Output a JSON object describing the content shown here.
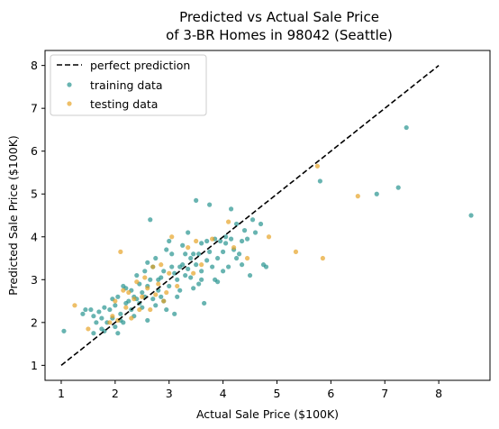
{
  "chart_data": {
    "type": "scatter",
    "title_lines": [
      "Predicted vs Actual Sale Price",
      "of 3-BR Homes in 98042 (Seattle)"
    ],
    "xlabel": "Actual Sale Price ($100K)",
    "ylabel": "Predicted Sale Price ($100K)",
    "xlim": [
      0.7,
      8.95
    ],
    "ylim": [
      0.65,
      8.35
    ],
    "xticks": [
      1,
      2,
      3,
      4,
      5,
      6,
      7,
      8
    ],
    "yticks": [
      1,
      2,
      3,
      4,
      5,
      6,
      7,
      8
    ],
    "grid": false,
    "legend_position": "top-left",
    "colors": {
      "reference_line": "#000000",
      "training": "#20908c",
      "testing": "#e6a020"
    },
    "reference_line": {
      "name": "perfect prediction",
      "x": [
        1,
        8
      ],
      "y": [
        1,
        8
      ]
    },
    "series": [
      {
        "name": "training data",
        "points": [
          [
            1.05,
            1.8
          ],
          [
            1.4,
            2.2
          ],
          [
            1.45,
            2.3
          ],
          [
            1.55,
            2.3
          ],
          [
            1.6,
            2.15
          ],
          [
            1.65,
            2.0
          ],
          [
            1.7,
            2.25
          ],
          [
            1.75,
            2.1
          ],
          [
            1.8,
            1.8
          ],
          [
            1.85,
            2.0
          ],
          [
            1.9,
            2.3
          ],
          [
            1.95,
            2.1
          ],
          [
            2.0,
            2.4
          ],
          [
            2.05,
            2.6
          ],
          [
            2.1,
            2.2
          ],
          [
            2.15,
            2.0
          ],
          [
            2.2,
            2.8
          ],
          [
            2.25,
            2.5
          ],
          [
            2.3,
            2.3
          ],
          [
            2.35,
            2.6
          ],
          [
            2.4,
            3.1
          ],
          [
            2.45,
            2.9
          ],
          [
            2.5,
            2.7
          ],
          [
            2.55,
            3.2
          ],
          [
            2.6,
            2.85
          ],
          [
            2.65,
            4.4
          ],
          [
            2.7,
            3.3
          ],
          [
            2.75,
            3.5
          ],
          [
            2.8,
            3.0
          ],
          [
            2.85,
            2.6
          ],
          [
            2.9,
            3.2
          ],
          [
            2.95,
            3.7
          ],
          [
            3.0,
            3.9
          ],
          [
            3.05,
            3.3
          ],
          [
            3.1,
            2.2
          ],
          [
            3.15,
            3.0
          ],
          [
            3.2,
            3.3
          ],
          [
            3.25,
            3.8
          ],
          [
            3.3,
            3.1
          ],
          [
            3.35,
            4.1
          ],
          [
            3.4,
            3.5
          ],
          [
            3.45,
            2.8
          ],
          [
            3.5,
            4.85
          ],
          [
            3.55,
            3.6
          ],
          [
            3.6,
            3.2
          ],
          [
            3.65,
            2.45
          ],
          [
            3.7,
            3.9
          ],
          [
            3.75,
            4.75
          ],
          [
            3.8,
            3.3
          ],
          [
            3.85,
            3.0
          ],
          [
            3.9,
            3.5
          ],
          [
            3.95,
            3.9
          ],
          [
            4.0,
            3.65
          ],
          [
            4.05,
            4.0
          ],
          [
            4.1,
            3.3
          ],
          [
            4.15,
            4.65
          ],
          [
            4.2,
            3.7
          ],
          [
            4.25,
            3.5
          ],
          [
            4.3,
            3.6
          ],
          [
            4.35,
            3.9
          ],
          [
            4.4,
            4.15
          ],
          [
            4.5,
            3.1
          ],
          [
            4.55,
            4.4
          ],
          [
            4.6,
            4.1
          ],
          [
            4.7,
            4.3
          ],
          [
            4.75,
            3.35
          ],
          [
            4.8,
            3.3
          ],
          [
            5.8,
            5.3
          ],
          [
            6.85,
            5.0
          ],
          [
            7.25,
            5.15
          ],
          [
            7.4,
            6.55
          ],
          [
            8.6,
            4.5
          ],
          [
            1.8,
            2.35
          ],
          [
            2.0,
            1.9
          ],
          [
            2.05,
            1.75
          ],
          [
            2.1,
            2.05
          ],
          [
            2.2,
            2.45
          ],
          [
            2.3,
            2.75
          ],
          [
            2.35,
            2.15
          ],
          [
            2.4,
            2.55
          ],
          [
            2.5,
            2.35
          ],
          [
            2.55,
            2.6
          ],
          [
            2.6,
            2.05
          ],
          [
            2.65,
            3.0
          ],
          [
            2.75,
            2.4
          ],
          [
            2.8,
            2.75
          ],
          [
            2.9,
            2.5
          ],
          [
            3.0,
            2.85
          ],
          [
            3.05,
            3.6
          ],
          [
            3.15,
            2.6
          ],
          [
            3.25,
            3.35
          ],
          [
            3.3,
            3.6
          ],
          [
            3.4,
            3.05
          ],
          [
            3.5,
            3.35
          ],
          [
            3.55,
            2.9
          ],
          [
            3.6,
            3.85
          ],
          [
            3.7,
            3.45
          ],
          [
            3.75,
            3.65
          ],
          [
            3.85,
            3.95
          ],
          [
            3.9,
            2.95
          ],
          [
            4.0,
            3.2
          ],
          [
            4.05,
            3.85
          ],
          [
            4.15,
            3.95
          ],
          [
            4.25,
            4.3
          ],
          [
            4.35,
            3.35
          ],
          [
            4.45,
            3.95
          ],
          [
            1.6,
            1.75
          ],
          [
            1.75,
            1.85
          ],
          [
            1.95,
            2.55
          ],
          [
            2.15,
            2.85
          ],
          [
            2.45,
            2.45
          ],
          [
            2.6,
            3.4
          ],
          [
            2.7,
            2.55
          ],
          [
            2.85,
            3.05
          ],
          [
            2.95,
            2.3
          ],
          [
            3.1,
            3.15
          ],
          [
            3.2,
            2.75
          ],
          [
            3.35,
            3.25
          ],
          [
            3.45,
            3.6
          ],
          [
            3.6,
            3.0
          ]
        ]
      },
      {
        "name": "testing data",
        "points": [
          [
            1.25,
            2.4
          ],
          [
            1.5,
            1.85
          ],
          [
            1.95,
            2.15
          ],
          [
            2.0,
            2.5
          ],
          [
            2.05,
            2.05
          ],
          [
            2.1,
            3.65
          ],
          [
            2.15,
            2.75
          ],
          [
            2.2,
            2.35
          ],
          [
            2.3,
            2.1
          ],
          [
            2.35,
            2.55
          ],
          [
            2.4,
            2.95
          ],
          [
            2.45,
            2.3
          ],
          [
            2.5,
            2.6
          ],
          [
            2.55,
            3.05
          ],
          [
            2.6,
            2.8
          ],
          [
            2.65,
            2.3
          ],
          [
            2.7,
            3.3
          ],
          [
            2.75,
            2.65
          ],
          [
            2.8,
            2.9
          ],
          [
            2.85,
            3.35
          ],
          [
            2.9,
            2.5
          ],
          [
            3.0,
            3.15
          ],
          [
            3.05,
            4.0
          ],
          [
            3.15,
            2.85
          ],
          [
            3.35,
            3.75
          ],
          [
            3.5,
            3.9
          ],
          [
            3.6,
            3.35
          ],
          [
            3.8,
            3.95
          ],
          [
            4.1,
            4.35
          ],
          [
            4.2,
            3.75
          ],
          [
            4.45,
            3.5
          ],
          [
            4.85,
            4.0
          ],
          [
            5.35,
            3.65
          ],
          [
            5.75,
            5.65
          ],
          [
            5.85,
            3.5
          ],
          [
            6.5,
            4.95
          ],
          [
            1.9,
            2.0
          ],
          [
            2.25,
            2.7
          ],
          [
            2.95,
            2.7
          ],
          [
            3.45,
            3.15
          ]
        ]
      }
    ]
  },
  "legend": {
    "items": [
      {
        "label": "perfect prediction"
      },
      {
        "label": "training data"
      },
      {
        "label": "testing data"
      }
    ]
  }
}
